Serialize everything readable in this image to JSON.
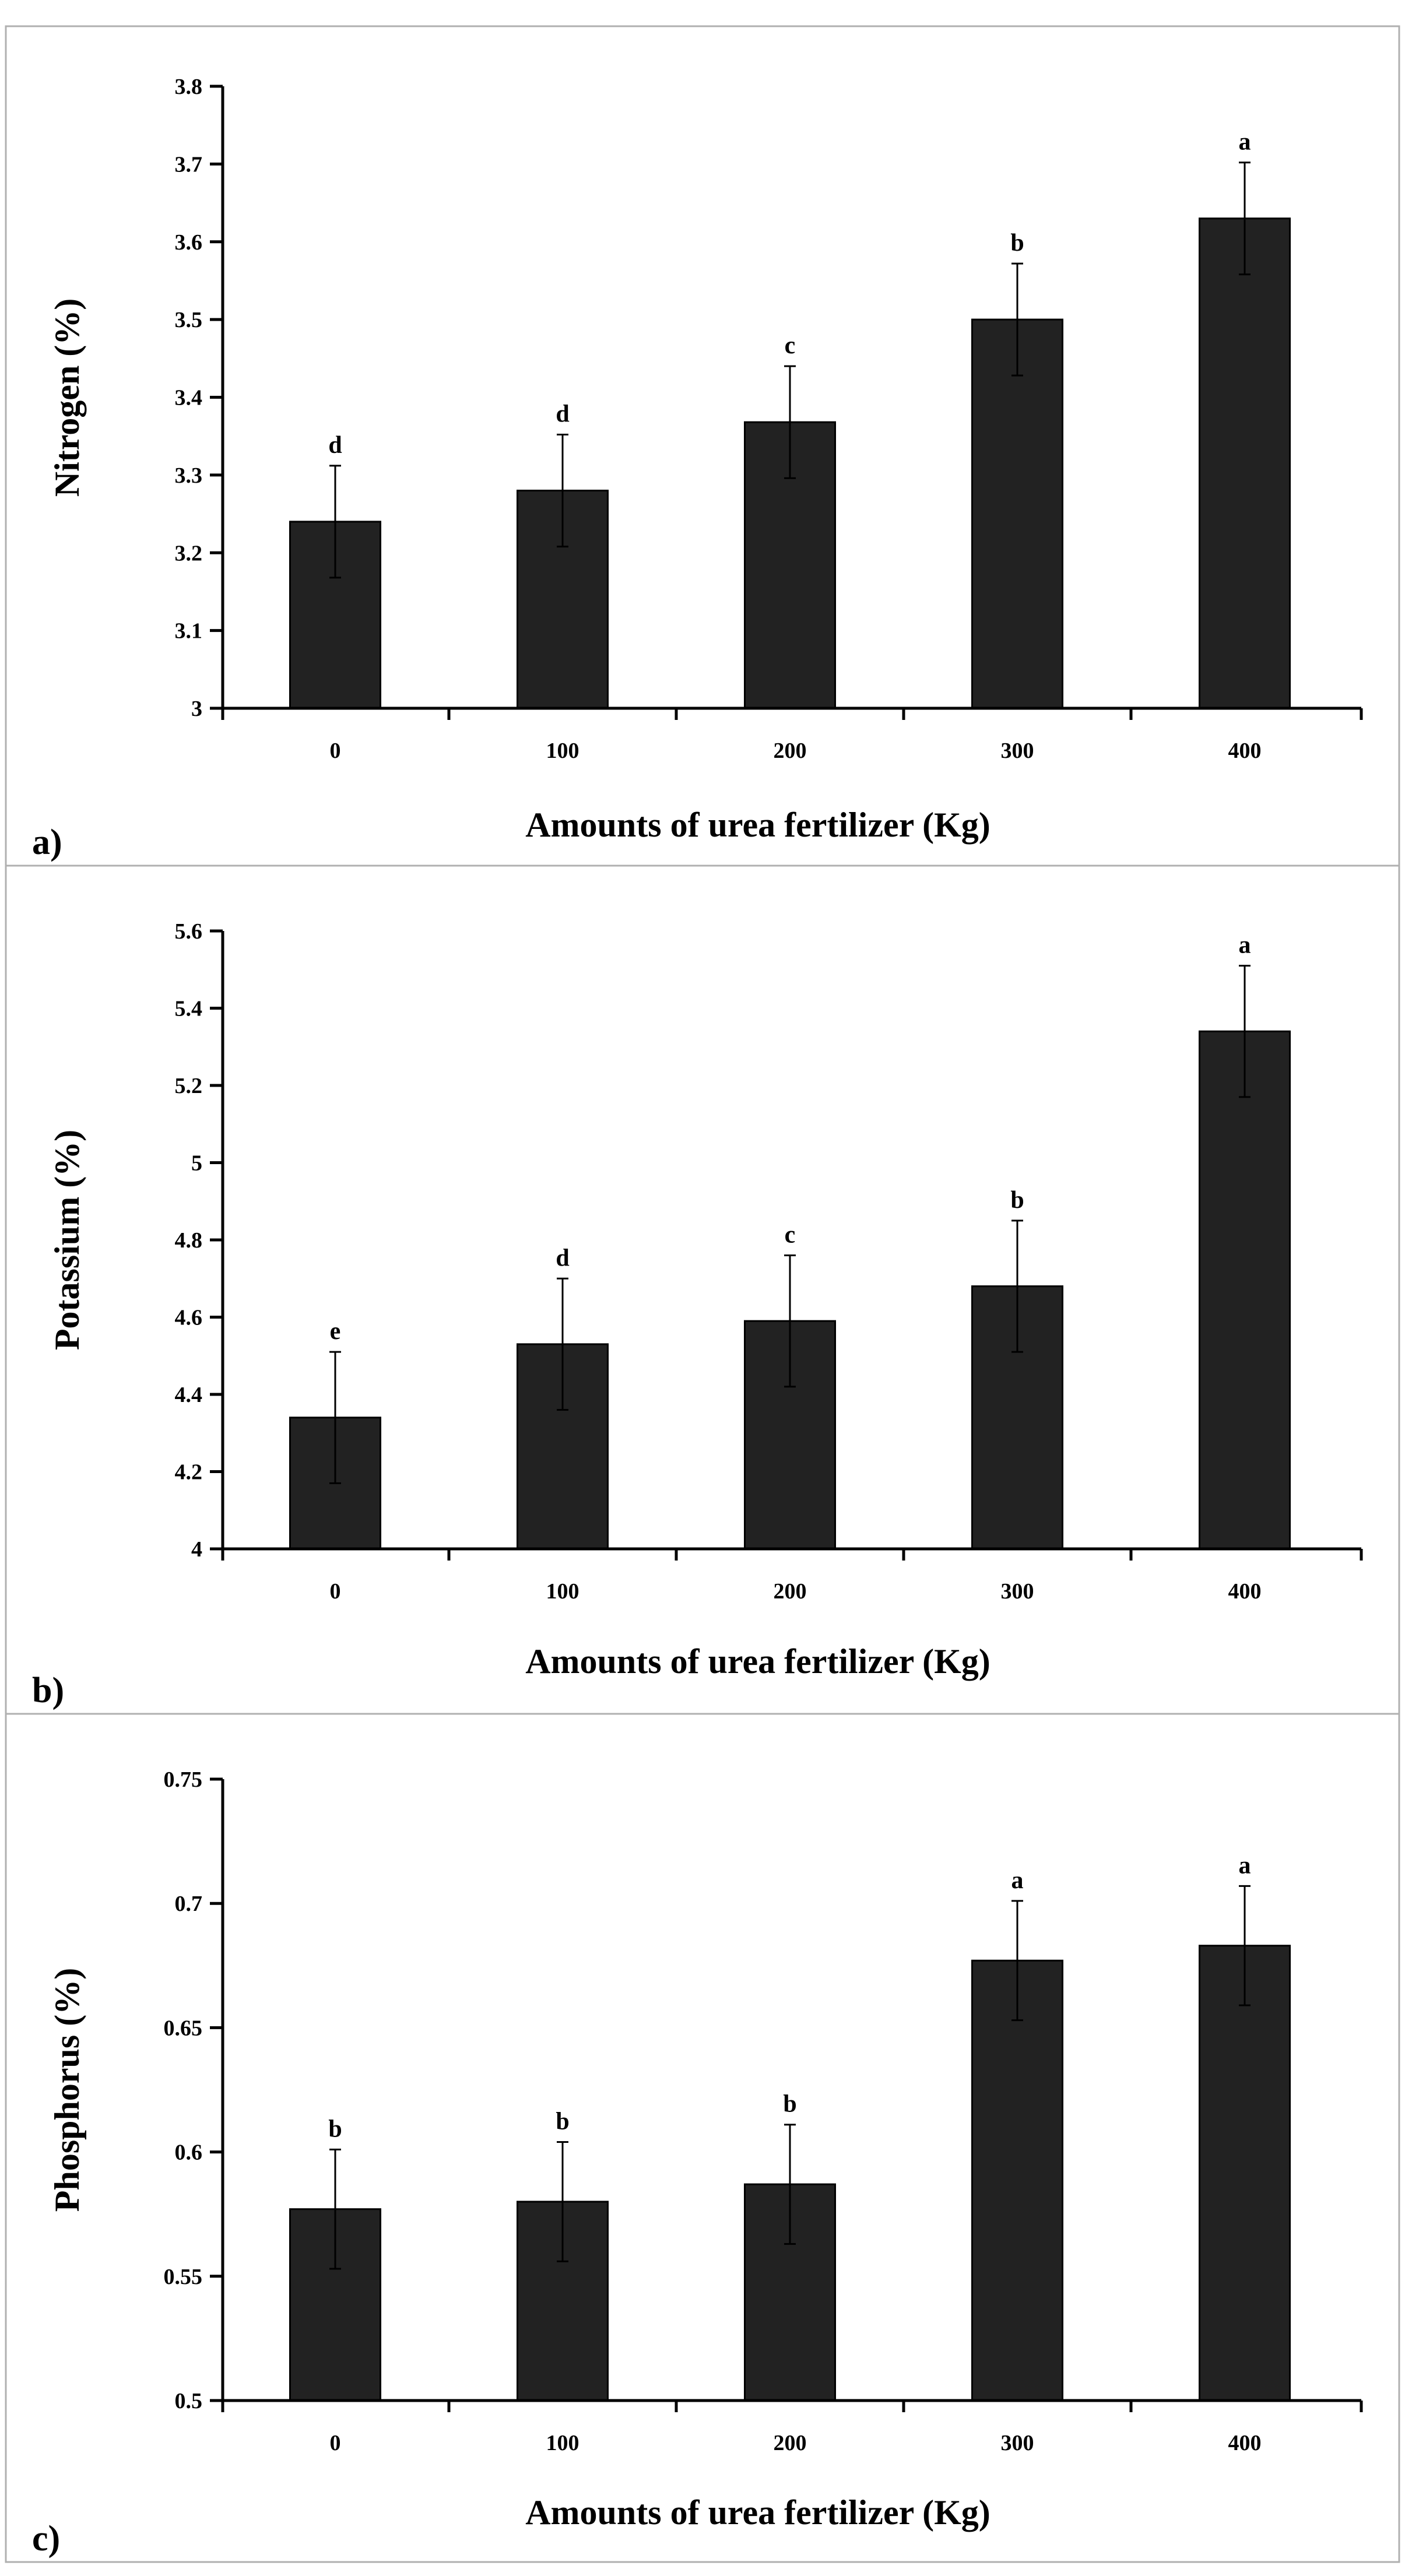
{
  "colors": {
    "bar": "#222222",
    "axis": "#000000",
    "frame": "#b0b0b0",
    "background": "#ffffff"
  },
  "chart_data": [
    {
      "type": "bar",
      "panel_label": "a)",
      "xlabel": "Amounts of urea fertilizer (Kg)",
      "ylabel": "Nitrogen (%)",
      "categories": [
        "0",
        "100",
        "200",
        "300",
        "400"
      ],
      "values": [
        3.24,
        3.28,
        3.368,
        3.5,
        3.63
      ],
      "errors": [
        0.072,
        0.072,
        0.072,
        0.072,
        0.072
      ],
      "significance": [
        "d",
        "d",
        "c",
        "b",
        "a"
      ],
      "ylim": [
        3,
        3.8
      ],
      "yticks": [
        3,
        3.1,
        3.2,
        3.3,
        3.4,
        3.5,
        3.6,
        3.7,
        3.8
      ],
      "ytick_labels": [
        "3",
        "3.1",
        "3.2",
        "3.3",
        "3.4",
        "3.5",
        "3.6",
        "3.7",
        "3.8"
      ]
    },
    {
      "type": "bar",
      "panel_label": "b)",
      "xlabel": "Amounts of urea fertilizer (Kg)",
      "ylabel": "Potassium (%)",
      "categories": [
        "0",
        "100",
        "200",
        "300",
        "400"
      ],
      "values": [
        4.34,
        4.53,
        4.59,
        4.68,
        5.34
      ],
      "errors": [
        0.17,
        0.17,
        0.17,
        0.17,
        0.17
      ],
      "significance": [
        "e",
        "d",
        "c",
        "b",
        "a"
      ],
      "ylim": [
        4,
        5.6
      ],
      "yticks": [
        4,
        4.2,
        4.4,
        4.6,
        4.8,
        5,
        5.2,
        5.4,
        5.6
      ],
      "ytick_labels": [
        "4",
        "4.2",
        "4.4",
        "4.6",
        "4.8",
        "5",
        "5.2",
        "5.4",
        "5.6"
      ]
    },
    {
      "type": "bar",
      "panel_label": "c)",
      "xlabel": "Amounts of urea fertilizer (Kg)",
      "ylabel": "Phosphorus (%)",
      "categories": [
        "0",
        "100",
        "200",
        "300",
        "400"
      ],
      "values": [
        0.577,
        0.58,
        0.587,
        0.677,
        0.683
      ],
      "errors": [
        0.024,
        0.024,
        0.024,
        0.024,
        0.024
      ],
      "significance": [
        "b",
        "b",
        "b",
        "a",
        "a"
      ],
      "ylim": [
        0.5,
        0.75
      ],
      "yticks": [
        0.5,
        0.55,
        0.6,
        0.65,
        0.7,
        0.75
      ],
      "ytick_labels": [
        "0.5",
        "0.55",
        "0.6",
        "0.65",
        "0.7",
        "0.75"
      ]
    }
  ]
}
